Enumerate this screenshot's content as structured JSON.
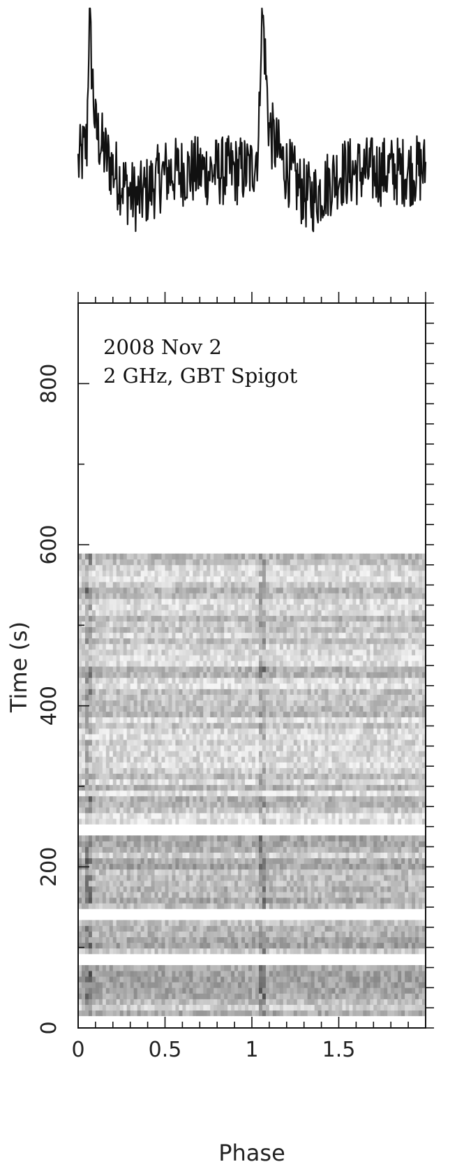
{
  "chart_data": [
    {
      "type": "line",
      "panel": "pulse-profile",
      "title": "",
      "xlabel": "",
      "ylabel": "",
      "xlim": [
        0,
        2
      ],
      "axes_shown": false,
      "description_of_series": "profile",
      "series": [
        {
          "x": [
            0.0,
            0.05,
            0.06,
            0.065,
            0.07,
            0.08,
            0.1,
            0.15,
            0.2,
            0.25,
            0.3,
            0.35,
            0.4,
            0.45,
            0.5,
            0.6,
            0.7,
            0.8,
            0.9,
            1.0,
            1.04,
            1.05,
            1.06,
            1.07,
            1.08,
            1.1,
            1.15,
            1.2,
            1.25,
            1.3,
            1.35,
            1.4,
            1.45,
            1.5,
            1.6,
            1.7,
            1.8,
            1.9,
            2.0
          ],
          "values": [
            0.28,
            0.38,
            0.85,
            1.0,
            0.9,
            0.72,
            0.45,
            0.34,
            0.26,
            0.2,
            0.14,
            0.12,
            0.16,
            0.2,
            0.24,
            0.25,
            0.25,
            0.25,
            0.25,
            0.26,
            0.38,
            0.85,
            1.0,
            0.9,
            0.72,
            0.45,
            0.34,
            0.26,
            0.2,
            0.14,
            0.12,
            0.16,
            0.2,
            0.24,
            0.25,
            0.25,
            0.25,
            0.25,
            0.26
          ]
        }
      ]
    },
    {
      "type": "heatmap",
      "panel": "time-phase",
      "title": "",
      "xlabel": "Phase",
      "ylabel": "Time (s)",
      "xlim": [
        0,
        2
      ],
      "ylim": [
        0,
        900
      ],
      "xticks": [
        0,
        0.5,
        1,
        1.5
      ],
      "xtick_labels": [
        "0",
        "0.5",
        "1",
        "1.5"
      ],
      "yticks": [
        0,
        200,
        400,
        600,
        800
      ],
      "ytick_labels": [
        "0",
        "200",
        "400",
        "600",
        "800"
      ],
      "data_extent_seconds": [
        15,
        588
      ],
      "gaps_seconds": [
        [
          77,
          90
        ],
        [
          133,
          148
        ],
        [
          236,
          250
        ]
      ],
      "pulse_phases": [
        0.06,
        1.06
      ],
      "colormap": "greyscale",
      "annotations": [
        "2008 Nov 2",
        "2 GHz, GBT Spigot"
      ]
    }
  ]
}
